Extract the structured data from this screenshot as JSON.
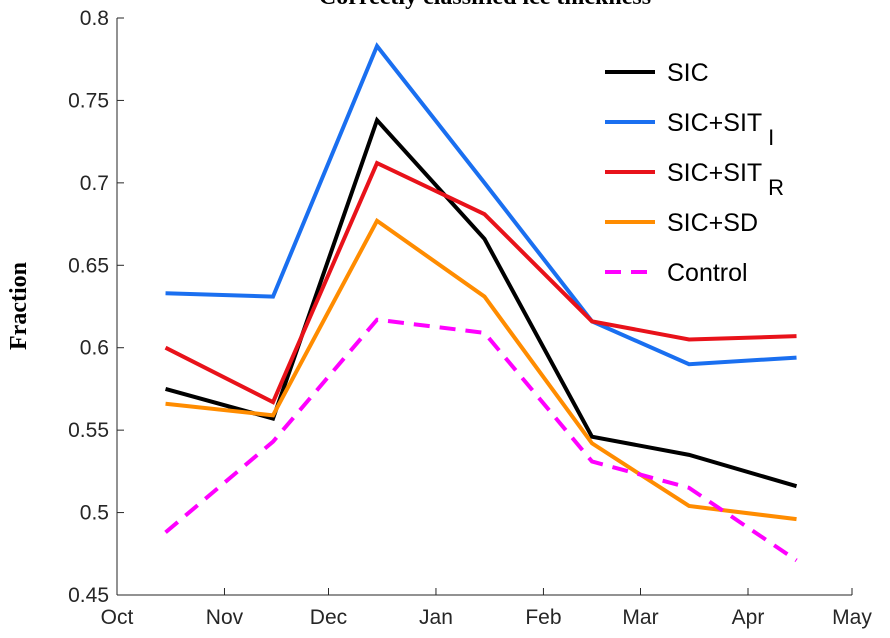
{
  "chart_data": {
    "type": "line",
    "title": "Correctly classified ice thickness",
    "y_label": "Fraction",
    "x": [
      14,
      45,
      75,
      106,
      137,
      165,
      196
    ],
    "xlim": [
      0,
      212
    ],
    "xticks": [
      {
        "value": 0,
        "label": "Oct"
      },
      {
        "value": 31,
        "label": "Nov"
      },
      {
        "value": 61,
        "label": "Dec"
      },
      {
        "value": 92,
        "label": "Jan"
      },
      {
        "value": 123,
        "label": "Feb"
      },
      {
        "value": 151,
        "label": "Mar"
      },
      {
        "value": 182,
        "label": "Apr"
      },
      {
        "value": 212,
        "label": "May"
      }
    ],
    "ylim": [
      0.45,
      0.8
    ],
    "yticks": [
      0.45,
      0.5,
      0.55,
      0.6,
      0.65,
      0.7,
      0.75,
      0.8
    ],
    "legend": "upper right",
    "series": [
      {
        "name": "SIC",
        "color": "#000000",
        "style": "solid",
        "values": [
          0.575,
          0.557,
          0.738,
          0.666,
          0.546,
          0.535,
          0.516
        ]
      },
      {
        "name": "SIC+SIT_I",
        "color": "#1a6ff0",
        "style": "solid",
        "values": [
          0.633,
          0.631,
          0.783,
          0.7,
          0.616,
          0.59,
          0.594
        ]
      },
      {
        "name": "SIC+SIT_R",
        "color": "#e8121a",
        "style": "solid",
        "values": [
          0.6,
          0.567,
          0.712,
          0.681,
          0.616,
          0.605,
          0.607
        ]
      },
      {
        "name": "SIC+SD",
        "color": "#ff8c00",
        "style": "solid",
        "values": [
          0.566,
          0.559,
          0.677,
          0.631,
          0.542,
          0.504,
          0.496
        ]
      },
      {
        "name": "Control",
        "color": "#ff00ff",
        "style": "dashed",
        "values": [
          0.488,
          0.543,
          0.617,
          0.609,
          0.531,
          0.515,
          0.471
        ]
      }
    ]
  }
}
